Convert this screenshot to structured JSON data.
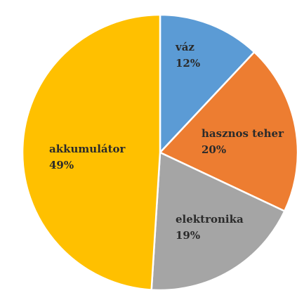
{
  "chart_data": {
    "type": "pie",
    "title": "",
    "slices": [
      {
        "name": "váz",
        "value": 12,
        "label": "12%",
        "color": "#5b9bd5"
      },
      {
        "name": "hasznos teher",
        "value": 20,
        "label": "20%",
        "color": "#ed7d31"
      },
      {
        "name": "elektronika",
        "value": 19,
        "label": "19%",
        "color": "#a5a5a5"
      },
      {
        "name": "akkumulátor",
        "value": 49,
        "label": "49%",
        "color": "#ffc000"
      }
    ],
    "start_angle_deg": 0,
    "direction": "clockwise",
    "legend": "none",
    "slice_border_color": "#ffffff"
  }
}
